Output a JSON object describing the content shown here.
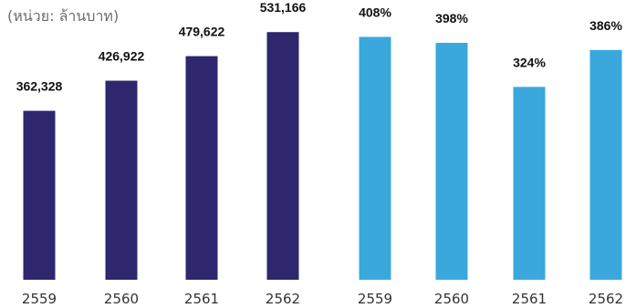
{
  "unit_note": "(หน่วย: ล้านบาท)",
  "colors": {
    "left_series": "#2e276d",
    "right_series": "#3aa8dc"
  },
  "chart_data": [
    {
      "type": "bar",
      "categories": [
        "2559",
        "2560",
        "2561",
        "2562"
      ],
      "values": [
        362328,
        426922,
        479622,
        531166
      ],
      "data_labels": [
        "362,328",
        "426,922",
        "479,622",
        "531,166"
      ],
      "ylim": [
        0,
        600000
      ],
      "grid": false,
      "legend": "none"
    },
    {
      "type": "bar",
      "categories": [
        "2559",
        "2560",
        "2561",
        "2562"
      ],
      "values": [
        408,
        398,
        324,
        386
      ],
      "data_labels": [
        "408%",
        "398%",
        "324%",
        "386%"
      ],
      "ylim": [
        0,
        470
      ],
      "grid": false,
      "legend": "none"
    }
  ]
}
